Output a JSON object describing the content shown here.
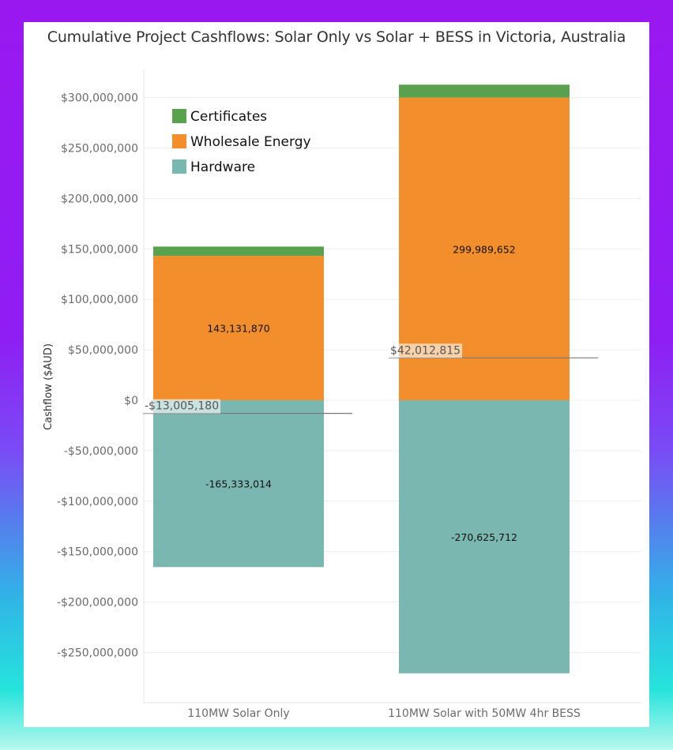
{
  "chart_data": {
    "type": "bar",
    "stacked": true,
    "title": "Cumulative Project Cashflows: Solar Only vs Solar + BESS in Victoria, Australia",
    "xlabel": "",
    "ylabel": "Cashflow ($AUD)",
    "ylim": [
      -300000000,
      350000000
    ],
    "yticks": [
      300000000,
      250000000,
      200000000,
      150000000,
      100000000,
      50000000,
      0,
      -50000000,
      -100000000,
      -150000000,
      -200000000,
      -250000000
    ],
    "ytick_labels": [
      "$300,000,000",
      "$250,000,000",
      "$200,000,000",
      "$150,000,000",
      "$100,000,000",
      "$50,000,000",
      "$0",
      "-$50,000,000",
      "-$100,000,000",
      "-$150,000,000",
      "-$200,000,000",
      "-$250,000,000"
    ],
    "categories": [
      "110MW Solar Only",
      "110MW Solar with 50MW 4hr BESS"
    ],
    "series": [
      {
        "name": "Hardware",
        "color": "#79b7b0",
        "values": [
          -165333014,
          -270625712
        ],
        "labels": [
          "-165,333,014",
          "-270,625,712"
        ]
      },
      {
        "name": "Wholesale Energy",
        "color": "#f28e2b",
        "values": [
          143131870,
          299989652
        ],
        "labels": [
          "143,131,870",
          "299,989,652"
        ]
      },
      {
        "name": "Certificates",
        "color": "#59a14f",
        "values": [
          9200000,
          12800000
        ],
        "labels": [
          "",
          ""
        ]
      }
    ],
    "legend": {
      "position": "top-left",
      "items": [
        "Certificates",
        "Wholesale Energy",
        "Hardware"
      ]
    },
    "reference_lines": [
      {
        "category": "110MW Solar Only",
        "value": -13005180,
        "label": "-$13,005,180"
      },
      {
        "category": "110MW Solar with 50MW 4hr BESS",
        "value": 42012815,
        "label": "$42,012,815"
      }
    ],
    "grid": true
  }
}
